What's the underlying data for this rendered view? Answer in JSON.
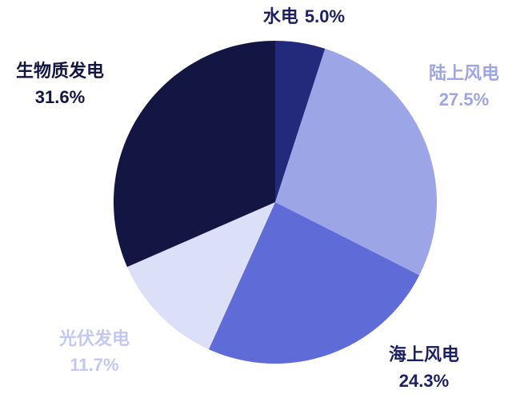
{
  "chart_data": {
    "type": "pie",
    "categories": [
      "水电",
      "陆上风电",
      "海上风电",
      "光伏发电",
      "生物质发电"
    ],
    "values": [
      5.0,
      27.5,
      24.3,
      11.7,
      31.6
    ],
    "value_labels": [
      "5.0%",
      "27.5%",
      "24.3%",
      "11.7%",
      "31.6%"
    ],
    "colors": [
      "#232a7c",
      "#9ca5e6",
      "#5f6bd7",
      "#dcdff8",
      "#131642"
    ]
  }
}
